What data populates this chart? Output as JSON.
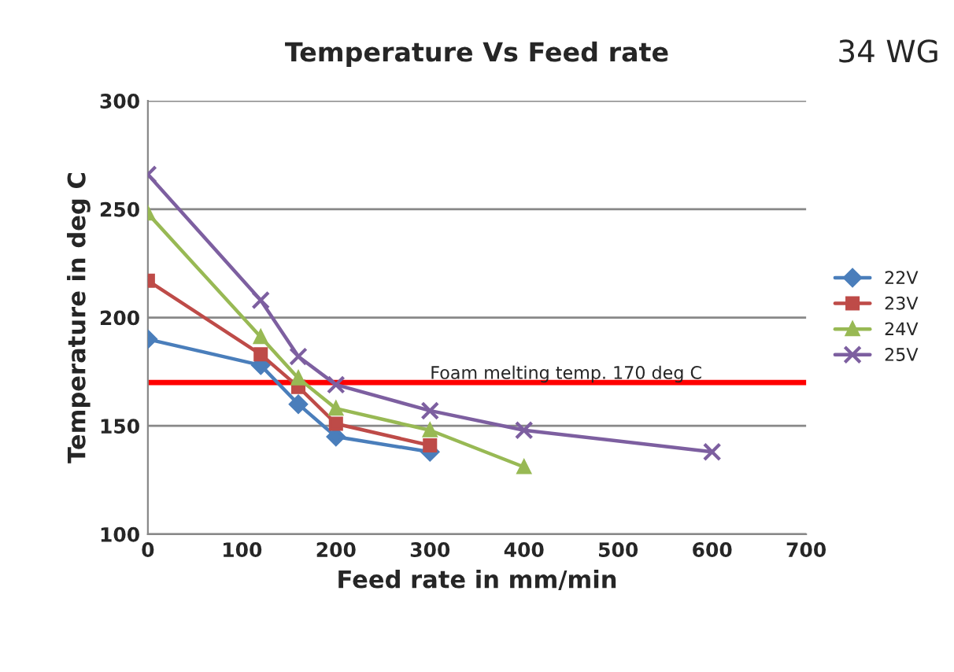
{
  "chart_data": {
    "type": "line",
    "title": "Temperature Vs Feed rate",
    "xlabel": "Feed rate in mm/min",
    "ylabel": "Temperature in deg C",
    "annotations": [
      "34 WG"
    ],
    "xlim": [
      0,
      700
    ],
    "xticks": [
      0,
      100,
      200,
      300,
      400,
      500,
      600,
      700
    ],
    "ylim": [
      100,
      300
    ],
    "yticks": [
      100,
      150,
      200,
      250,
      300
    ],
    "grid": "y",
    "legend": "right",
    "ref_lines": [
      {
        "axis": "y",
        "value": 170,
        "label": "Foam melting temp. 170 deg C",
        "color": "#ff0000"
      }
    ],
    "series": [
      {
        "name": "22V",
        "color": "#4a7ebb",
        "marker": "diamond",
        "x": [
          0,
          120,
          160,
          200,
          300
        ],
        "values": [
          190,
          178,
          160,
          145,
          138
        ]
      },
      {
        "name": "23V",
        "color": "#be4b48",
        "marker": "square",
        "x": [
          0,
          120,
          160,
          200,
          300
        ],
        "values": [
          217,
          183,
          168,
          151,
          141
        ]
      },
      {
        "name": "24V",
        "color": "#98b954",
        "marker": "triangle",
        "x": [
          0,
          120,
          160,
          200,
          300,
          400
        ],
        "values": [
          248,
          191,
          172,
          158,
          148,
          131
        ]
      },
      {
        "name": "25V",
        "color": "#7d5fa0",
        "marker": "cross",
        "x": [
          0,
          120,
          160,
          200,
          300,
          400,
          600
        ],
        "values": [
          266,
          208,
          182,
          169,
          157,
          148,
          138
        ]
      }
    ]
  }
}
